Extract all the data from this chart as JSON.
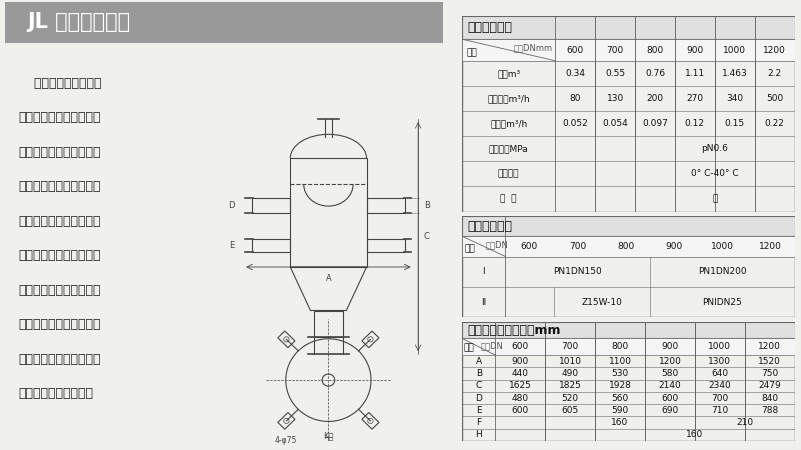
{
  "title": "JL 型砾石过滤器",
  "title_bg": "#999999",
  "title_color": "#ffffff",
  "bg_color": "#f0f0ec",
  "content_bg": "#f0f0ec",
  "description_lines": [
    "    砾石过滤器在火力发",
    "电厂主要用来澄清和消除",
    "循环水中杂质，以保证循",
    "环系统的安全，和达到循",
    "环水回用的节约目的，所",
    "以这种设备在高寒缺水地",
    "区更显示出它的重要性，",
    "当然，矿山、冶金、建材",
    "等部门作为净化处理设备",
    "使用，也可十分合适。"
  ],
  "table1_title": "主要技术参数",
  "table1_subtitle": "规格DNmm",
  "table1_col0_label": "参数",
  "table1_cols": [
    "600",
    "700",
    "800",
    "900",
    "1000",
    "1200"
  ],
  "table1_rows": [
    [
      "容积m³",
      "0.34",
      "0.55",
      "0.76",
      "1.11",
      "1.463",
      "2.2"
    ],
    [
      "滤水能力m³/h",
      "80",
      "130",
      "200",
      "270",
      "340",
      "500"
    ],
    [
      "滤石量m³/h",
      "0.052",
      "0.054",
      "0.097",
      "0.12",
      "0.15",
      "0.22"
    ],
    [
      "使用压力MPa",
      "",
      "",
      "pN0.6",
      "",
      "",
      ""
    ],
    [
      "适用温度",
      "",
      "",
      "0° C-40° C",
      "",
      "",
      ""
    ],
    [
      "介  质",
      "",
      "",
      "水",
      "",
      "",
      ""
    ]
  ],
  "table2_title": "法兰连接尺寸",
  "table2_subtitle": "规格DN",
  "table2_col0_label": "代号",
  "table2_cols": [
    "600",
    "700",
    "800",
    "900",
    "1000",
    "1200"
  ],
  "table2_rows": [
    [
      "I",
      "PN1DN150",
      "",
      "",
      "PN1DN200",
      "",
      ""
    ],
    [
      "II",
      "",
      "Z15W-10",
      "",
      "PNIDN25",
      "",
      ""
    ]
  ],
  "table3_title": "主要外形尺寸连接表mm",
  "table3_subtitle": "规格DN",
  "table3_col0_label": "代号",
  "table3_cols": [
    "600",
    "700",
    "800",
    "900",
    "1000",
    "1200"
  ],
  "table3_rows": [
    [
      "A",
      "900",
      "1010",
      "1100",
      "1200",
      "1300",
      "1520"
    ],
    [
      "B",
      "440",
      "490",
      "530",
      "580",
      "640",
      "750"
    ],
    [
      "C",
      "1625",
      "1825",
      "1928",
      "2140",
      "2340",
      "2479"
    ],
    [
      "D",
      "480",
      "520",
      "560",
      "600",
      "700",
      "840"
    ],
    [
      "E",
      "600",
      "605",
      "590",
      "690",
      "710",
      "788"
    ],
    [
      "F",
      "",
      "160",
      "",
      "",
      "210",
      ""
    ],
    [
      "H",
      "",
      "",
      "160",
      "",
      "",
      ""
    ]
  ],
  "table_border_color": "#666666",
  "table_text_color": "#111111",
  "section_title_size": 9,
  "table_font_size": 6.5,
  "desc_font_size": 9
}
